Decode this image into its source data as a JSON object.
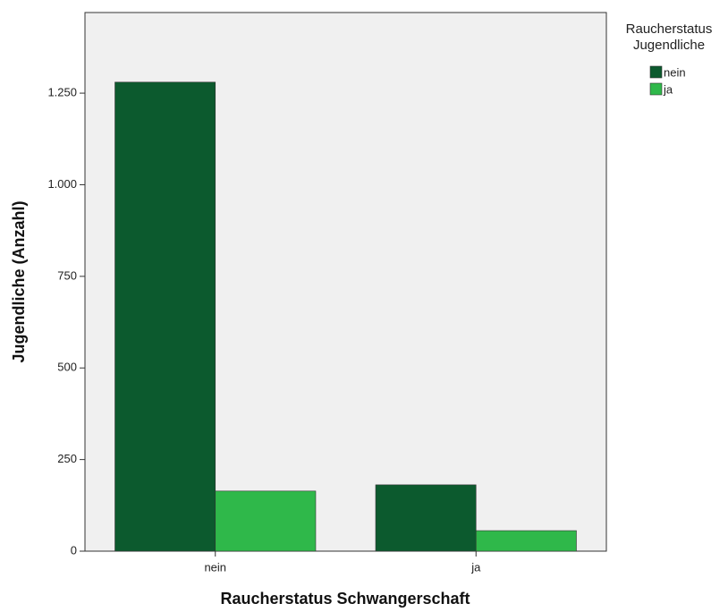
{
  "chart_data": {
    "type": "bar",
    "x_label": "Raucherstatus Schwangerschaft",
    "y_label": "Jugendliche (Anzahl)",
    "legend_title": "Raucherstatus Jugendliche",
    "categories": [
      "nein",
      "ja"
    ],
    "series": [
      {
        "name": "nein",
        "color": "#0c5a2e",
        "values": [
          1280,
          181
        ]
      },
      {
        "name": "ja",
        "color": "#2fb84a",
        "values": [
          164,
          56
        ]
      }
    ],
    "ylim": [
      0,
      1470
    ],
    "yticks": [
      0,
      250,
      500,
      750,
      {
        "value": 1000,
        "label": "1.000"
      },
      {
        "value": 1250,
        "label": "1.250"
      }
    ],
    "grid": false,
    "plot_background": "#f0f0f0"
  }
}
